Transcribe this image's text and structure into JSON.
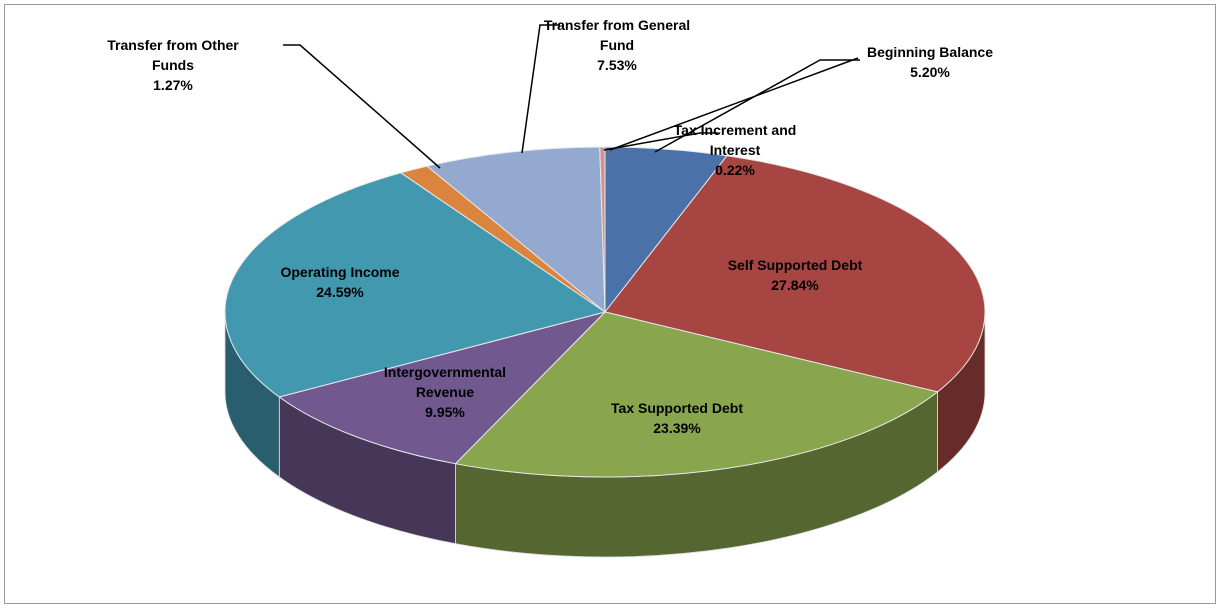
{
  "chart_data": {
    "type": "pie",
    "three_d": true,
    "categories": [
      "Beginning Balance",
      "Self Supported Debt",
      "Tax Supported Debt",
      "Intergovernmental Revenue",
      "Operating Income",
      "Transfer from Other Funds",
      "Transfer from General Fund",
      "Tax Increment and Interest"
    ],
    "values": [
      5.2,
      27.84,
      23.39,
      9.95,
      24.59,
      1.27,
      7.53,
      0.22
    ],
    "value_labels": [
      "5.20%",
      "27.84%",
      "23.39%",
      "9.95%",
      "24.59%",
      "1.27%",
      "7.53%",
      "0.22%"
    ],
    "colors": [
      "#4a72a8",
      "#a64542",
      "#89a54e",
      "#71588f",
      "#4198af",
      "#db843d",
      "#93a9cf",
      "#d19392"
    ]
  }
}
